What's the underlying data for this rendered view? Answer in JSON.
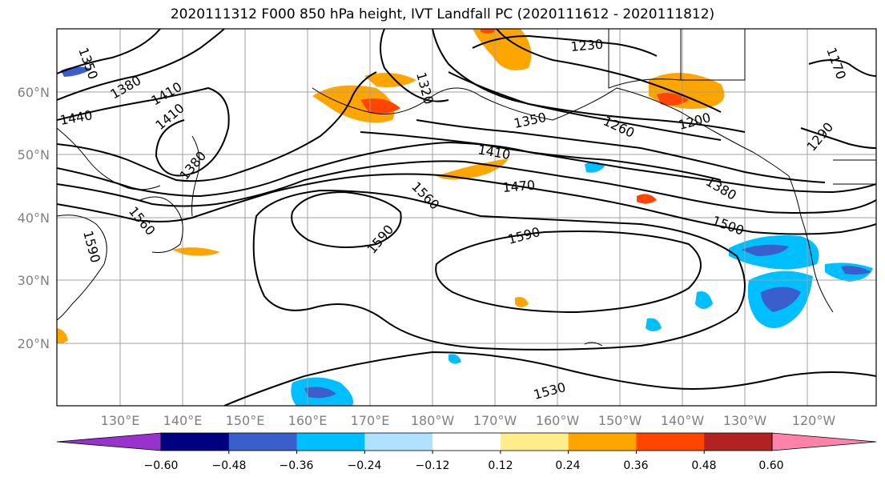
{
  "title": "2020111312 F000 850 hPa height, IVT Landfall PC (2020111612 - 2020111812)",
  "map": {
    "lat_labels": [
      "60°N",
      "50°N",
      "40°N",
      "30°N",
      "20°N"
    ],
    "lon_labels": [
      "130°E",
      "140°E",
      "150°E",
      "160°E",
      "170°E",
      "180°W",
      "170°W",
      "160°W",
      "150°W",
      "140°W",
      "130°W",
      "120°W"
    ],
    "gridlines": true,
    "contour_labels": [
      "1350",
      "1380",
      "1410",
      "1440",
      "1410",
      "1380",
      "1320",
      "1230",
      "1350",
      "1260",
      "1200",
      "1410",
      "1470",
      "1380",
      "1500",
      "1560",
      "1590",
      "1590",
      "1560",
      "1590",
      "1530",
      "1170",
      "1290"
    ]
  },
  "colorbar": {
    "ticks": [
      "−0.60",
      "−0.48",
      "−0.36",
      "−0.24",
      "−0.12",
      "0.12",
      "0.24",
      "0.36",
      "0.48",
      "0.60"
    ],
    "colors": [
      "#9932CC",
      "#000080",
      "#3A5FCD",
      "#00BFFF",
      "#B0E2FF",
      "#FFFFFF",
      "#FFEC8B",
      "#FFA500",
      "#FF4500",
      "#B22222",
      "#FF82AB"
    ]
  }
}
